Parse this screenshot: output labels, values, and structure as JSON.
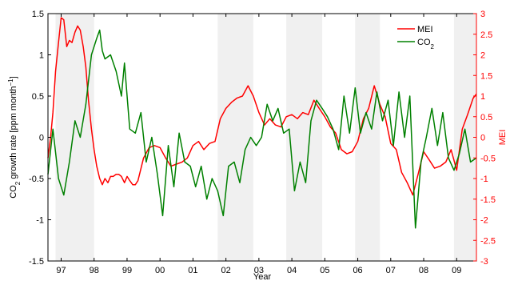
{
  "chart_data": {
    "type": "line",
    "xlabel": "Year",
    "ylabel_left": "CO2 growth rate [ppm month",
    "ylabel_left_parts": {
      "pre": "CO",
      "sub": "2",
      "mid": " growth rate [ppm month",
      "sup": "−1",
      "post": "]"
    },
    "ylabel_right": "MEI",
    "xlim": [
      1996.6,
      2009.6
    ],
    "ylim_left": [
      -1.5,
      1.5
    ],
    "ylim_right": [
      -3,
      3
    ],
    "x_ticks": [
      {
        "value": 1997,
        "label": "97"
      },
      {
        "value": 1998,
        "label": "98"
      },
      {
        "value": 1999,
        "label": "99"
      },
      {
        "value": 2000,
        "label": "00"
      },
      {
        "value": 2001,
        "label": "01"
      },
      {
        "value": 2002,
        "label": "02"
      },
      {
        "value": 2003,
        "label": "03"
      },
      {
        "value": 2004,
        "label": "04"
      },
      {
        "value": 2005,
        "label": "05"
      },
      {
        "value": 2006,
        "label": "06"
      },
      {
        "value": 2007,
        "label": "07"
      },
      {
        "value": 2008,
        "label": "08"
      },
      {
        "value": 2009,
        "label": "09"
      }
    ],
    "y_ticks_left": [
      {
        "value": 1.5,
        "label": "1.5"
      },
      {
        "value": 1,
        "label": "1"
      },
      {
        "value": 0.5,
        "label": "0.5"
      },
      {
        "value": 0,
        "label": "0"
      },
      {
        "value": -0.5,
        "label": "-0.5"
      },
      {
        "value": -1,
        "label": "-1"
      },
      {
        "value": -1.5,
        "label": "-1.5"
      }
    ],
    "y_ticks_right": [
      {
        "value": 3,
        "label": "3"
      },
      {
        "value": 2.5,
        "label": "2.5"
      },
      {
        "value": 2,
        "label": "2"
      },
      {
        "value": 1.5,
        "label": "1.5"
      },
      {
        "value": 1,
        "label": "1"
      },
      {
        "value": 0.5,
        "label": "0.5"
      },
      {
        "value": 0,
        "label": "0"
      },
      {
        "value": -0.5,
        "label": "-0.5"
      },
      {
        "value": -1,
        "label": "-1"
      },
      {
        "value": -1.5,
        "label": "-1.5"
      },
      {
        "value": -2,
        "label": "-2"
      },
      {
        "value": -2.5,
        "label": "-2.5"
      },
      {
        "value": -3,
        "label": "-3"
      }
    ],
    "shaded_periods": [
      [
        1996.83,
        1998.0
      ],
      [
        2001.75,
        2002.83
      ],
      [
        2003.83,
        2004.92
      ],
      [
        2005.92,
        2006.67
      ],
      [
        2008.92,
        2009.6
      ]
    ],
    "legend": {
      "position": "top-right",
      "entries": [
        {
          "name": "MEI",
          "color": "#ff0000"
        },
        {
          "name": "CO",
          "sub": "2",
          "color": "#008000"
        }
      ]
    },
    "series": [
      {
        "name": "MEI",
        "axis": "right",
        "color": "#ff0000",
        "x": [
          1996.6,
          1996.68,
          1996.75,
          1996.83,
          1996.92,
          1997.0,
          1997.08,
          1997.17,
          1997.25,
          1997.33,
          1997.42,
          1997.5,
          1997.58,
          1997.67,
          1997.75,
          1997.83,
          1997.92,
          1998.0,
          1998.08,
          1998.17,
          1998.25,
          1998.33,
          1998.42,
          1998.5,
          1998.58,
          1998.67,
          1998.75,
          1998.83,
          1998.92,
          1999.0,
          1999.08,
          1999.17,
          1999.25,
          1999.33,
          1999.5,
          1999.67,
          1999.83,
          2000.0,
          2000.17,
          2000.33,
          2000.5,
          2000.67,
          2000.83,
          2001.0,
          2001.17,
          2001.33,
          2001.5,
          2001.67,
          2001.83,
          2002.0,
          2002.17,
          2002.33,
          2002.5,
          2002.67,
          2002.83,
          2003.0,
          2003.17,
          2003.33,
          2003.5,
          2003.67,
          2003.83,
          2004.0,
          2004.17,
          2004.33,
          2004.5,
          2004.67,
          2004.83,
          2005.0,
          2005.17,
          2005.33,
          2005.5,
          2005.67,
          2005.83,
          2006.0,
          2006.17,
          2006.33,
          2006.5,
          2006.67,
          2006.83,
          2007.0,
          2007.17,
          2007.33,
          2007.5,
          2007.67,
          2007.83,
          2008.0,
          2008.17,
          2008.33,
          2008.5,
          2008.67,
          2008.83,
          2009.0,
          2009.17,
          2009.33,
          2009.5,
          2009.6
        ],
        "y": [
          -0.5,
          0.0,
          0.6,
          1.6,
          2.3,
          2.9,
          2.85,
          2.2,
          2.35,
          2.3,
          2.55,
          2.7,
          2.6,
          2.2,
          1.7,
          0.9,
          0.2,
          -0.3,
          -0.7,
          -1.0,
          -1.15,
          -1.0,
          -1.1,
          -0.95,
          -0.95,
          -0.9,
          -0.9,
          -0.95,
          -1.1,
          -0.95,
          -1.05,
          -1.15,
          -1.15,
          -1.05,
          -0.5,
          -0.25,
          -0.2,
          -0.25,
          -0.5,
          -0.7,
          -0.65,
          -0.6,
          -0.5,
          -0.2,
          -0.1,
          -0.3,
          -0.15,
          -0.1,
          0.45,
          0.7,
          0.85,
          0.95,
          1.0,
          1.25,
          1.0,
          0.6,
          0.3,
          0.45,
          0.3,
          0.25,
          0.5,
          0.55,
          0.45,
          0.6,
          0.55,
          0.9,
          0.7,
          0.5,
          0.25,
          0.1,
          -0.3,
          -0.4,
          -0.35,
          -0.1,
          0.45,
          0.7,
          1.25,
          0.8,
          0.5,
          -0.15,
          -0.3,
          -0.85,
          -1.1,
          -1.4,
          -0.9,
          -0.35,
          -0.55,
          -0.75,
          -0.7,
          -0.6,
          -0.3,
          -0.8,
          0.2,
          0.55,
          0.95,
          1.05
        ]
      },
      {
        "name": "CO2",
        "axis": "left",
        "color": "#008000",
        "x": [
          1996.6,
          1996.75,
          1996.92,
          1997.08,
          1997.25,
          1997.42,
          1997.58,
          1997.75,
          1997.92,
          1998.08,
          1998.17,
          1998.25,
          1998.33,
          1998.5,
          1998.67,
          1998.83,
          1998.92,
          1999.08,
          1999.25,
          1999.42,
          1999.58,
          1999.75,
          1999.92,
          2000.08,
          2000.25,
          2000.42,
          2000.58,
          2000.75,
          2000.92,
          2001.08,
          2001.25,
          2001.42,
          2001.58,
          2001.75,
          2001.92,
          2002.08,
          2002.25,
          2002.42,
          2002.58,
          2002.75,
          2002.92,
          2003.08,
          2003.25,
          2003.42,
          2003.58,
          2003.75,
          2003.92,
          2004.08,
          2004.25,
          2004.42,
          2004.58,
          2004.75,
          2004.92,
          2005.08,
          2005.25,
          2005.42,
          2005.58,
          2005.75,
          2005.92,
          2006.08,
          2006.25,
          2006.42,
          2006.58,
          2006.75,
          2006.92,
          2007.08,
          2007.25,
          2007.42,
          2007.58,
          2007.75,
          2007.92,
          2008.08,
          2008.25,
          2008.42,
          2008.58,
          2008.75,
          2008.92,
          2009.08,
          2009.25,
          2009.42,
          2009.6
        ],
        "y": [
          -0.45,
          0.1,
          -0.5,
          -0.7,
          -0.3,
          0.2,
          0.0,
          0.4,
          1.0,
          1.2,
          1.3,
          1.05,
          0.95,
          1.0,
          0.8,
          0.5,
          0.9,
          0.1,
          0.05,
          0.3,
          -0.3,
          0.0,
          -0.45,
          -0.95,
          -0.1,
          -0.6,
          0.05,
          -0.3,
          -0.35,
          -0.6,
          -0.35,
          -0.75,
          -0.5,
          -0.65,
          -0.95,
          -0.35,
          -0.3,
          -0.55,
          -0.15,
          0.0,
          -0.1,
          0.0,
          0.4,
          0.2,
          0.35,
          0.05,
          0.1,
          -0.65,
          -0.3,
          -0.55,
          0.2,
          0.45,
          0.35,
          0.25,
          0.1,
          -0.15,
          0.5,
          0.05,
          0.6,
          0.05,
          0.3,
          0.1,
          0.55,
          0.2,
          0.45,
          -0.1,
          0.55,
          0.0,
          0.5,
          -1.1,
          -0.3,
          0.0,
          0.35,
          -0.1,
          0.3,
          -0.25,
          -0.4,
          -0.2,
          0.1,
          -0.3,
          -0.25
        ]
      }
    ]
  }
}
